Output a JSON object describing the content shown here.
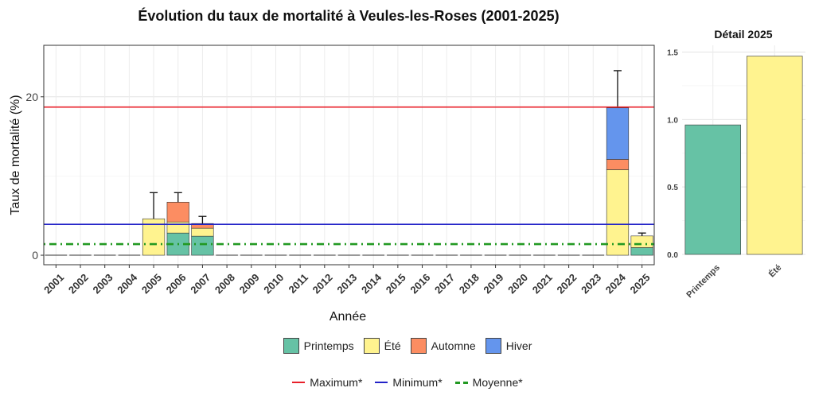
{
  "chart_data": [
    {
      "type": "bar",
      "subtype": "stacked",
      "title": "Évolution du taux de mortalité à Veules-les-Roses (2001-2025)",
      "xlabel": "Année",
      "ylabel": "Taux de mortalité (%)",
      "ylim": [
        -1.2,
        26.5
      ],
      "yticks": [
        0,
        20
      ],
      "grid": true,
      "categories": [
        "2001",
        "2002",
        "2003",
        "2004",
        "2005",
        "2006",
        "2007",
        "2008",
        "2009",
        "2010",
        "2011",
        "2012",
        "2013",
        "2014",
        "2015",
        "2016",
        "2017",
        "2018",
        "2019",
        "2020",
        "2021",
        "2022",
        "2023",
        "2024",
        "2025"
      ],
      "series": [
        {
          "name": "Printemps",
          "color": "#66C2A5",
          "values": [
            0,
            0,
            0,
            0,
            0,
            2.8,
            2.4,
            0,
            0,
            0,
            0,
            0,
            0,
            0,
            0,
            0,
            0,
            0,
            0,
            0,
            0,
            0,
            0,
            0,
            0.96
          ]
        },
        {
          "name": "Été",
          "color": "#FFF38F",
          "values": [
            0,
            0,
            0,
            0,
            4.6,
            1.4,
            1.0,
            0,
            0,
            0,
            0,
            0,
            0,
            0,
            0,
            0,
            0,
            0,
            0,
            0,
            0,
            0,
            0,
            10.8,
            1.47
          ]
        },
        {
          "name": "Automne",
          "color": "#FC8D62",
          "values": [
            0,
            0,
            0,
            0,
            0,
            2.5,
            0.6,
            0,
            0,
            0,
            0,
            0,
            0,
            0,
            0,
            0,
            0,
            0,
            0,
            0,
            0,
            0,
            0,
            1.3,
            0
          ]
        },
        {
          "name": "Hiver",
          "color": "#6495ED",
          "values": [
            0,
            0,
            0,
            0,
            0,
            0,
            0,
            0,
            0,
            0,
            0,
            0,
            0,
            0,
            0,
            0,
            0,
            0,
            0,
            0,
            0,
            0,
            0,
            6.5,
            0
          ]
        }
      ],
      "error_bar_top": [
        null,
        null,
        null,
        null,
        7.9,
        7.9,
        4.9,
        null,
        null,
        null,
        null,
        null,
        null,
        null,
        null,
        null,
        null,
        null,
        null,
        null,
        null,
        null,
        null,
        23.3,
        2.8
      ],
      "reference_lines": [
        {
          "name": "Maximum*",
          "value": 18.7,
          "color": "#E8202A",
          "style": "solid"
        },
        {
          "name": "Minimum*",
          "value": 3.9,
          "color": "#2323C8",
          "style": "solid"
        },
        {
          "name": "Moyenne*",
          "value": 1.4,
          "color": "#229922",
          "style": "dotdash"
        }
      ],
      "legend_position": "bottom"
    },
    {
      "type": "bar",
      "title": "Détail 2025",
      "categories": [
        "Printemps",
        "Été"
      ],
      "values": [
        0.96,
        1.47
      ],
      "colors": [
        "#66C2A5",
        "#FFF38F"
      ],
      "ylim": [
        0,
        1.55
      ],
      "yticks": [
        0.0,
        0.5,
        1.0,
        1.5
      ],
      "ytick_labels": [
        "0.0",
        "0.5",
        "1.0",
        "1.5"
      ],
      "grid": true
    }
  ]
}
